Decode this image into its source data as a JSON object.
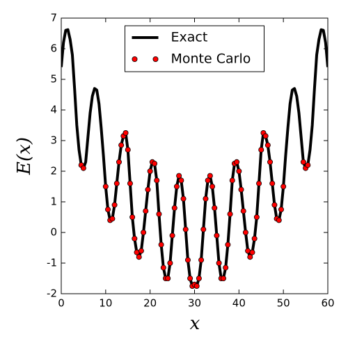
{
  "chart_data": {
    "type": "line",
    "xlabel": "x",
    "ylabel": "E(x)",
    "xlim": [
      0,
      60
    ],
    "xticks": [
      0,
      10,
      20,
      30,
      40,
      50,
      60
    ],
    "ylim": [
      -2,
      7
    ],
    "yticks": [
      -2,
      -1,
      0,
      1,
      2,
      3,
      4,
      5,
      6,
      7
    ],
    "legend": "upper center",
    "series": [
      {
        "name": "Exact",
        "color": "#000000",
        "marker": false,
        "x": [
          0,
          0.5,
          1,
          1.5,
          2,
          2.5,
          3,
          3.5,
          4,
          4.5,
          5,
          5.5,
          6,
          6.5,
          7,
          7.5,
          8,
          8.5,
          9,
          9.5,
          10,
          10.5,
          11,
          11.5,
          12,
          12.5,
          13,
          13.5,
          14,
          14.5,
          15,
          15.5,
          16,
          16.5,
          17,
          17.5,
          18,
          18.5,
          19,
          19.5,
          20,
          20.5,
          21,
          21.5,
          22,
          22.5,
          23,
          23.5,
          24,
          24.5,
          25,
          25.5,
          26,
          26.5,
          27,
          27.5,
          28,
          28.5,
          29,
          29.5,
          30,
          30.5,
          31,
          31.5,
          32,
          32.5,
          33,
          33.5,
          34,
          34.5,
          35,
          35.5,
          36,
          36.5,
          37,
          37.5,
          38,
          38.5,
          39,
          39.5,
          40,
          40.5,
          41,
          41.5,
          42,
          42.5,
          43,
          43.5,
          44,
          44.5,
          45,
          45.5,
          46,
          46.5,
          47,
          47.5,
          48,
          48.5,
          49,
          49.5,
          50,
          50.5,
          51,
          51.5,
          52,
          52.5,
          53,
          53.5,
          54,
          54.5,
          55,
          55.5,
          56,
          56.5,
          57,
          57.5,
          58,
          58.5,
          59,
          59.5,
          60
        ],
        "values": [
          5.4,
          6.2,
          6.6,
          6.62,
          6.3,
          5.8,
          4.7,
          3.5,
          2.7,
          2.2,
          2.1,
          2.3,
          3.1,
          3.9,
          4.45,
          4.7,
          4.65,
          4.2,
          3.4,
          2.5,
          1.5,
          0.75,
          0.4,
          0.45,
          0.9,
          1.6,
          2.3,
          2.85,
          3.15,
          3.25,
          2.7,
          1.6,
          0.5,
          -0.2,
          -0.65,
          -0.8,
          -0.6,
          0.0,
          0.7,
          1.4,
          2.0,
          2.3,
          2.25,
          1.7,
          0.6,
          -0.4,
          -1.15,
          -1.5,
          -1.5,
          -1.0,
          -0.1,
          0.8,
          1.5,
          1.85,
          1.7,
          1.1,
          0.1,
          -0.9,
          -1.5,
          -1.75,
          -1.7,
          -1.75,
          -1.5,
          -0.9,
          0.1,
          1.1,
          1.7,
          1.85,
          1.5,
          0.8,
          -0.1,
          -1.0,
          -1.5,
          -1.5,
          -1.15,
          -0.4,
          0.6,
          1.7,
          2.25,
          2.3,
          2.0,
          1.4,
          0.7,
          0.0,
          -0.6,
          -0.8,
          -0.65,
          -0.2,
          0.5,
          1.6,
          2.7,
          3.25,
          3.15,
          2.85,
          2.3,
          1.6,
          0.9,
          0.45,
          0.4,
          0.75,
          1.5,
          2.5,
          3.4,
          4.2,
          4.65,
          4.7,
          4.45,
          3.9,
          3.1,
          2.3,
          2.1,
          2.2,
          2.7,
          3.5,
          4.7,
          5.8,
          6.3,
          6.62,
          6.6,
          6.2,
          5.4
        ]
      },
      {
        "name": "Monte Carlo",
        "color": "#ff0000",
        "marker": true,
        "x": [
          4.5,
          5,
          10,
          10.5,
          11,
          11.5,
          12,
          12.5,
          13,
          13.5,
          14,
          14.5,
          15,
          15.5,
          16,
          16.5,
          17,
          17.5,
          18,
          18.5,
          19,
          19.5,
          20,
          20.5,
          21,
          21.5,
          22,
          22.5,
          23,
          23.5,
          24,
          24.5,
          25,
          25.5,
          26,
          26.5,
          27,
          27.5,
          28,
          28.5,
          29,
          29.5,
          30,
          30.5,
          31,
          31.5,
          32,
          32.5,
          33,
          33.5,
          34,
          34.5,
          35,
          35.5,
          36,
          36.5,
          37,
          37.5,
          38,
          38.5,
          39,
          39.5,
          40,
          40.5,
          41,
          41.5,
          42,
          42.5,
          43,
          43.5,
          44,
          44.5,
          45,
          45.5,
          46,
          46.5,
          47,
          47.5,
          48,
          48.5,
          49,
          49.5,
          50,
          54.5,
          55,
          55.5
        ],
        "values": [
          2.2,
          2.1,
          1.5,
          0.75,
          0.4,
          0.45,
          0.9,
          1.6,
          2.3,
          2.85,
          3.15,
          3.25,
          2.7,
          1.6,
          0.5,
          -0.2,
          -0.65,
          -0.8,
          -0.6,
          0.0,
          0.7,
          1.4,
          2.0,
          2.3,
          2.25,
          1.7,
          0.6,
          -0.4,
          -1.15,
          -1.5,
          -1.5,
          -1.0,
          -0.1,
          0.8,
          1.5,
          1.85,
          1.7,
          1.1,
          0.1,
          -0.9,
          -1.5,
          -1.75,
          -1.7,
          -1.75,
          -1.5,
          -0.9,
          0.1,
          1.1,
          1.7,
          1.85,
          1.5,
          0.8,
          -0.1,
          -1.0,
          -1.5,
          -1.5,
          -1.15,
          -0.4,
          0.6,
          1.7,
          2.25,
          2.3,
          2.0,
          1.4,
          0.7,
          0.0,
          -0.6,
          -0.8,
          -0.65,
          -0.2,
          0.5,
          1.6,
          2.7,
          3.25,
          3.15,
          2.85,
          2.3,
          1.6,
          0.9,
          0.45,
          0.4,
          0.75,
          1.5,
          2.3,
          2.1,
          2.2
        ]
      }
    ]
  }
}
